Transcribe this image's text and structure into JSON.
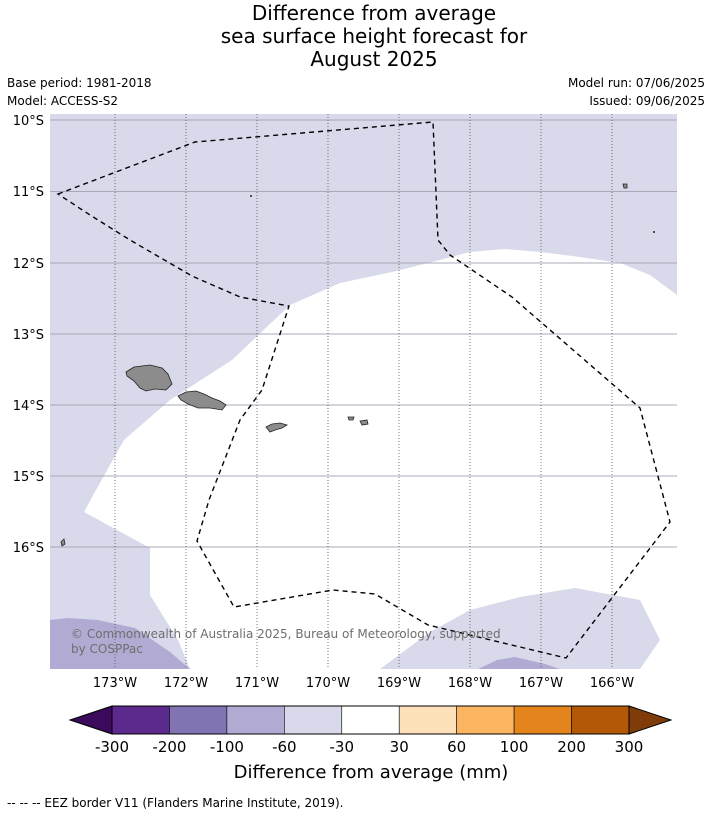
{
  "title": {
    "line1": "Difference from average",
    "line2": "sea surface height forecast for",
    "line3": "August 2025"
  },
  "meta": {
    "base_period": "Base period: 1981-2018",
    "model": "Model: ACCESS-S2",
    "model_run": "Model run: 07/06/2025",
    "issued": "Issued: 09/06/2025"
  },
  "axes": {
    "lat_labels": [
      "10°S",
      "11°S",
      "12°S",
      "13°S",
      "14°S",
      "15°S",
      "16°S"
    ],
    "lon_labels": [
      "173°W",
      "172°W",
      "171°W",
      "170°W",
      "169°W",
      "168°W",
      "167°W",
      "166°W"
    ]
  },
  "copyright": {
    "line1": "© Commonwealth of Australia 2025, Bureau of Meteorology, supported",
    "line2": "by COSPPac"
  },
  "colorbar": {
    "labels": [
      "-300",
      "-200",
      "-100",
      "-60",
      "-30",
      "30",
      "60",
      "100",
      "200",
      "300"
    ],
    "colors": [
      "#5b2a8c",
      "#8274b3",
      "#b1abd3",
      "#d8d9ea",
      "#ffffff",
      "#fde1b8",
      "#fbb562",
      "#e3841c",
      "#b35806"
    ],
    "under_color": "#3b0a5c",
    "over_color": "#7f3b08",
    "title": "Difference from average (mm)"
  },
  "map": {
    "region_colors": {
      "light": "#d8d9ea",
      "mid": "#b1abd3",
      "neutral": "#ffffff",
      "land": "#8c8c8c"
    }
  },
  "footer": "-- -- -- EEZ border V11 (Flanders Marine Institute, 2019)."
}
